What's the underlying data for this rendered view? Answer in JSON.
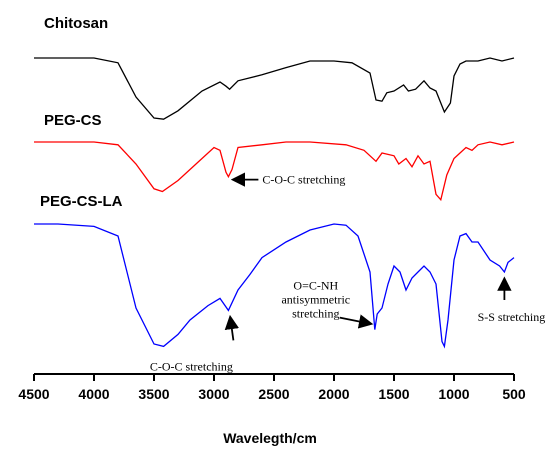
{
  "chart_data": {
    "type": "line",
    "title": "",
    "xlabel": "Wavelegth/cm",
    "ylabel": "",
    "xlim": [
      4500,
      500
    ],
    "x_reversed": true,
    "xticks": [
      4500,
      4000,
      3500,
      3000,
      2500,
      2000,
      1500,
      1000,
      500
    ],
    "series": [
      {
        "name": "Chitosan",
        "color": "#000000",
        "points": [
          [
            4500,
            0.0
          ],
          [
            4250,
            0.0
          ],
          [
            4000,
            0.0
          ],
          [
            3800,
            0.08
          ],
          [
            3650,
            0.65
          ],
          [
            3500,
            1.0
          ],
          [
            3420,
            1.02
          ],
          [
            3300,
            0.88
          ],
          [
            3100,
            0.55
          ],
          [
            2950,
            0.4
          ],
          [
            2900,
            0.47
          ],
          [
            2870,
            0.52
          ],
          [
            2800,
            0.38
          ],
          [
            2600,
            0.28
          ],
          [
            2400,
            0.16
          ],
          [
            2200,
            0.05
          ],
          [
            2000,
            0.05
          ],
          [
            1850,
            0.08
          ],
          [
            1700,
            0.25
          ],
          [
            1650,
            0.7
          ],
          [
            1600,
            0.72
          ],
          [
            1560,
            0.58
          ],
          [
            1500,
            0.55
          ],
          [
            1420,
            0.45
          ],
          [
            1380,
            0.55
          ],
          [
            1320,
            0.52
          ],
          [
            1250,
            0.38
          ],
          [
            1200,
            0.5
          ],
          [
            1150,
            0.55
          ],
          [
            1100,
            0.8
          ],
          [
            1080,
            0.9
          ],
          [
            1030,
            0.75
          ],
          [
            1000,
            0.3
          ],
          [
            950,
            0.1
          ],
          [
            900,
            0.05
          ],
          [
            800,
            0.05
          ],
          [
            700,
            0.0
          ],
          [
            600,
            0.05
          ],
          [
            500,
            0.0
          ]
        ]
      },
      {
        "name": "PEG-CS",
        "color": "#ff0000",
        "points": [
          [
            4500,
            0.0
          ],
          [
            4300,
            0.0
          ],
          [
            4000,
            0.0
          ],
          [
            3800,
            0.05
          ],
          [
            3650,
            0.4
          ],
          [
            3500,
            0.85
          ],
          [
            3430,
            0.9
          ],
          [
            3300,
            0.7
          ],
          [
            3150,
            0.4
          ],
          [
            3000,
            0.1
          ],
          [
            2950,
            0.15
          ],
          [
            2900,
            0.55
          ],
          [
            2880,
            0.63
          ],
          [
            2850,
            0.5
          ],
          [
            2800,
            0.1
          ],
          [
            2600,
            0.05
          ],
          [
            2400,
            0.0
          ],
          [
            2200,
            0.0
          ],
          [
            1900,
            0.05
          ],
          [
            1750,
            0.15
          ],
          [
            1650,
            0.35
          ],
          [
            1600,
            0.2
          ],
          [
            1500,
            0.25
          ],
          [
            1460,
            0.4
          ],
          [
            1400,
            0.3
          ],
          [
            1350,
            0.45
          ],
          [
            1300,
            0.25
          ],
          [
            1250,
            0.4
          ],
          [
            1200,
            0.35
          ],
          [
            1150,
            0.95
          ],
          [
            1110,
            1.05
          ],
          [
            1060,
            0.6
          ],
          [
            1000,
            0.3
          ],
          [
            950,
            0.2
          ],
          [
            900,
            0.1
          ],
          [
            850,
            0.15
          ],
          [
            800,
            0.05
          ],
          [
            700,
            0.0
          ],
          [
            600,
            0.05
          ],
          [
            500,
            0.0
          ]
        ]
      },
      {
        "name": "PEG-CS-LA",
        "color": "#0000ff",
        "points": [
          [
            4500,
            0.0
          ],
          [
            4300,
            0.0
          ],
          [
            4000,
            0.02
          ],
          [
            3800,
            0.1
          ],
          [
            3650,
            0.7
          ],
          [
            3500,
            1.0
          ],
          [
            3420,
            1.02
          ],
          [
            3300,
            0.92
          ],
          [
            3200,
            0.8
          ],
          [
            3050,
            0.68
          ],
          [
            2950,
            0.62
          ],
          [
            2880,
            0.72
          ],
          [
            2800,
            0.55
          ],
          [
            2700,
            0.42
          ],
          [
            2600,
            0.28
          ],
          [
            2400,
            0.15
          ],
          [
            2200,
            0.05
          ],
          [
            2000,
            0.0
          ],
          [
            1900,
            0.01
          ],
          [
            1800,
            0.1
          ],
          [
            1700,
            0.4
          ],
          [
            1660,
            0.88
          ],
          [
            1640,
            0.75
          ],
          [
            1600,
            0.7
          ],
          [
            1550,
            0.5
          ],
          [
            1500,
            0.35
          ],
          [
            1450,
            0.4
          ],
          [
            1400,
            0.55
          ],
          [
            1350,
            0.45
          ],
          [
            1300,
            0.4
          ],
          [
            1250,
            0.35
          ],
          [
            1200,
            0.4
          ],
          [
            1150,
            0.5
          ],
          [
            1100,
            0.98
          ],
          [
            1080,
            1.02
          ],
          [
            1050,
            0.8
          ],
          [
            1000,
            0.3
          ],
          [
            950,
            0.1
          ],
          [
            900,
            0.08
          ],
          [
            850,
            0.15
          ],
          [
            800,
            0.15
          ],
          [
            700,
            0.3
          ],
          [
            620,
            0.35
          ],
          [
            580,
            0.4
          ],
          [
            550,
            0.32
          ],
          [
            500,
            0.28
          ]
        ]
      }
    ],
    "annotations": [
      {
        "text": "C-O-C stretching",
        "x": 2880,
        "series": "PEG-CS"
      },
      {
        "text": "C-O-C stretching",
        "x": 2880,
        "series": "PEG-CS-LA"
      },
      {
        "lines": [
          "O=C-NH",
          "antisymmetric",
          "stretching"
        ],
        "x": 1660,
        "series": "PEG-CS-LA"
      },
      {
        "text": "S-S stretching",
        "x": 580,
        "series": "PEG-CS-LA"
      }
    ]
  }
}
